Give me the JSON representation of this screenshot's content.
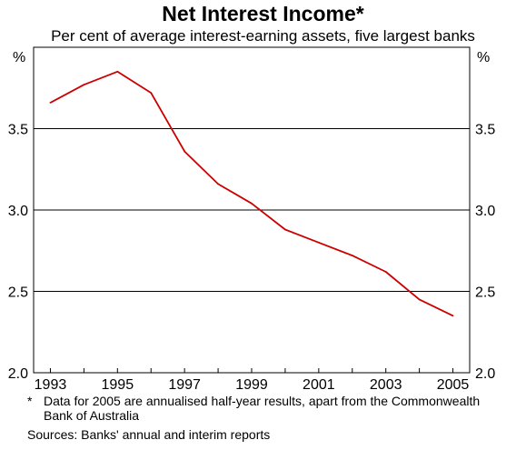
{
  "chart_data": {
    "type": "line",
    "title": "Net Interest Income*",
    "subtitle": "Per cent of average interest-earning assets, five largest banks",
    "ylabel_left": "%",
    "ylabel_right": "%",
    "ylim": [
      2.0,
      4.0
    ],
    "xlim": [
      1992.5,
      2005.5
    ],
    "yticks": [
      "2.0",
      "2.5",
      "3.0",
      "3.5"
    ],
    "xticks": [
      "1993",
      "1995",
      "1997",
      "1999",
      "2001",
      "2003",
      "2005"
    ],
    "grid": true,
    "series": [
      {
        "color": "#cc0000",
        "x": [
          1993,
          1994,
          1995,
          1996,
          1997,
          1998,
          1999,
          2000,
          2001,
          2002,
          2003,
          2004,
          2005
        ],
        "values": [
          3.66,
          3.77,
          3.85,
          3.72,
          3.36,
          3.16,
          3.04,
          2.88,
          2.8,
          2.72,
          2.62,
          2.45,
          2.35
        ]
      }
    ]
  },
  "footnote": {
    "marker": "*",
    "line1": "Data for 2005 are annualised half-year results, apart from the Commonwealth",
    "line2": "Bank of Australia"
  },
  "sources": "Sources: Banks' annual and interim reports"
}
